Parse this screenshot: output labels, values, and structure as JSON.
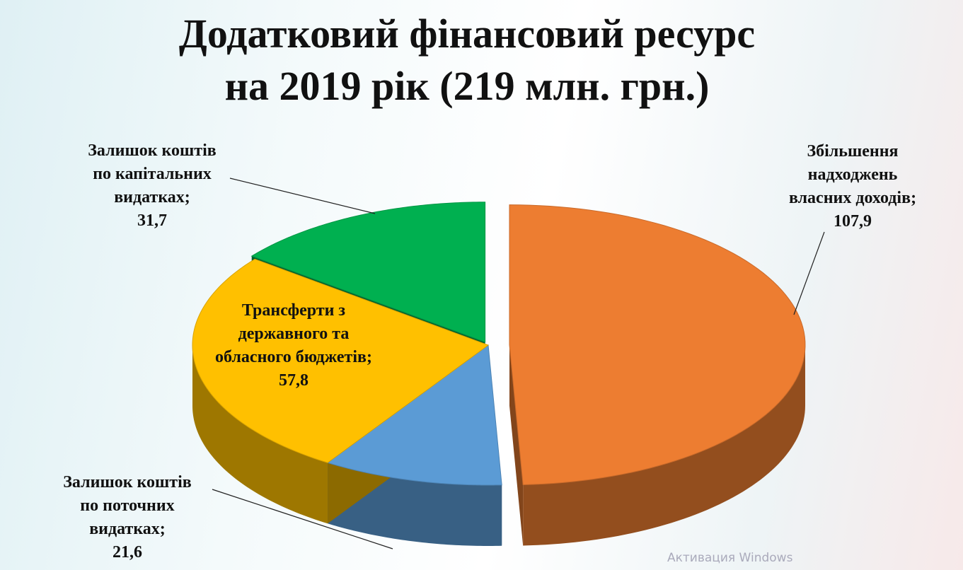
{
  "chart_data": {
    "type": "pie3d",
    "title": [
      "Додатковий фінансовий ресурс",
      "на 2019 рік (219 млн. грн.)"
    ],
    "categories": [
      "Збільшення\nнадходжень\nвласних доходів;",
      "Залишок коштів\nпо поточних\nвидатках;",
      "Трансферти з\nдержавного та\nобласного бюджетів;",
      "Залишок коштів\nпо капітальних\nвидатках;"
    ],
    "values": [
      107.9,
      21.6,
      57.8,
      31.7
    ],
    "value_labels": [
      "107,9",
      "21,6",
      "57,8",
      "31,7"
    ],
    "colors": [
      "#ed7d31",
      "#5b9bd5",
      "#ffc000",
      "#00b050"
    ]
  },
  "watermark": "Активация Windows"
}
